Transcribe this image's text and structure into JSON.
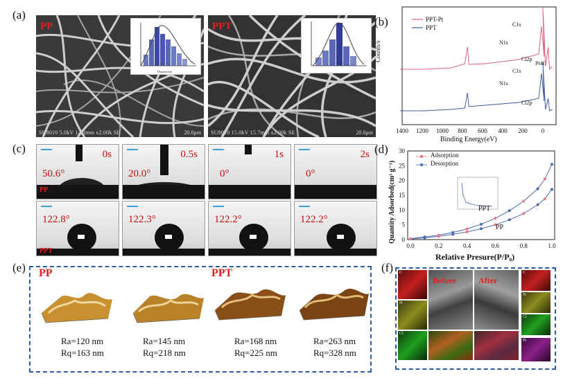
{
  "panel_labels": [
    "(a)",
    "(b)",
    "(c)",
    "(d)",
    "(e)",
    "(f)"
  ],
  "a": {
    "left_title": "PP",
    "right_title": "PPT",
    "left_caption": "SU8010 5.0kV 14.3mm x2.00k SE",
    "right_caption": "SU8010 15.0kV 15.7mm x2.00k SE",
    "left_scale": "20.0μm",
    "right_scale": "20.0μm",
    "inset_ylabel": "Percentage/%",
    "inset_xlabel": "Diameter/nm"
  },
  "b": {
    "xlabel": "Binding Energy(eV)",
    "ylabel": "Counts/s",
    "legend": [
      "PPT-Pt",
      "PPT"
    ],
    "colors": [
      "#d9607a",
      "#3d5aa0"
    ],
    "peak_labels_top": [
      "C1s",
      "N1s",
      "Cl2p",
      "Pt4f"
    ],
    "peak_labels_bottom": [
      "C1s",
      "N1s",
      "Cl2p"
    ],
    "xticks": [
      "1400",
      "1200",
      "1000",
      "800",
      "600",
      "400",
      "200",
      "0"
    ]
  },
  "c": {
    "times": [
      "0s",
      "0.5s",
      "1s",
      "2s"
    ],
    "pp_angles": [
      "50.6°",
      "20.0°",
      "0°",
      "0°"
    ],
    "ppt_angles": [
      "122.8°",
      "122.3°",
      "122.2°",
      "122.2°"
    ],
    "row1_label": "PP",
    "row2_label": "PPT"
  },
  "d": {
    "xlabel": "Relative Presure(P/P₀)",
    "ylabel": "Quantity Adsorbed(cm³ g⁻¹)",
    "legend": [
      "Adsorption",
      "Desorption"
    ],
    "curve_labels": [
      "PPT",
      "PP"
    ],
    "xticks": [
      "0.0",
      "0.2",
      "0.4",
      "0.6",
      "0.8",
      "1.0"
    ],
    "yticks": [
      "0",
      "5",
      "10",
      "15",
      "20",
      "25",
      "30"
    ],
    "colors": {
      "adsorption": "#e07a8a",
      "desorption": "#4a6bb0"
    }
  },
  "chart_data": {
    "type": "line",
    "xlabel": "Relative Presure(P/P₀)",
    "ylabel": "Quantity Adsorbed(cm³ g⁻¹)",
    "xlim": [
      0,
      1.0
    ],
    "ylim": [
      0,
      30
    ],
    "series": [
      {
        "name": "PPT",
        "x": [
          0.0,
          0.1,
          0.2,
          0.3,
          0.4,
          0.5,
          0.6,
          0.7,
          0.8,
          0.9,
          0.95,
          1.0
        ],
        "values": [
          0.3,
          0.9,
          1.5,
          2.4,
          3.6,
          5.2,
          7.2,
          9.8,
          13.0,
          17.2,
          20.5,
          25.5
        ]
      },
      {
        "name": "PP",
        "x": [
          0.0,
          0.1,
          0.2,
          0.3,
          0.4,
          0.5,
          0.6,
          0.7,
          0.8,
          0.9,
          0.95,
          1.0
        ],
        "values": [
          0.2,
          0.6,
          1.1,
          1.8,
          2.6,
          3.7,
          5.0,
          6.7,
          8.8,
          11.8,
          13.8,
          17.0
        ]
      }
    ]
  },
  "e": {
    "left_title": "PP",
    "right_title": "PPT",
    "items": [
      {
        "ra": "Ra=120 nm",
        "rq": "Rq=163 nm"
      },
      {
        "ra": "Ra=145 nm",
        "rq": "Rq=218 nm"
      },
      {
        "ra": "Ra=168 nm",
        "rq": "Rq=225 nm"
      },
      {
        "ra": "Ra=263 nm",
        "rq": "Rq=328 nm"
      }
    ]
  },
  "f": {
    "before": "Before",
    "after": "After",
    "eds_left": [
      "C",
      "N",
      "Cl"
    ],
    "eds_right": [
      "C",
      "N",
      "Cl",
      "Pt"
    ]
  }
}
